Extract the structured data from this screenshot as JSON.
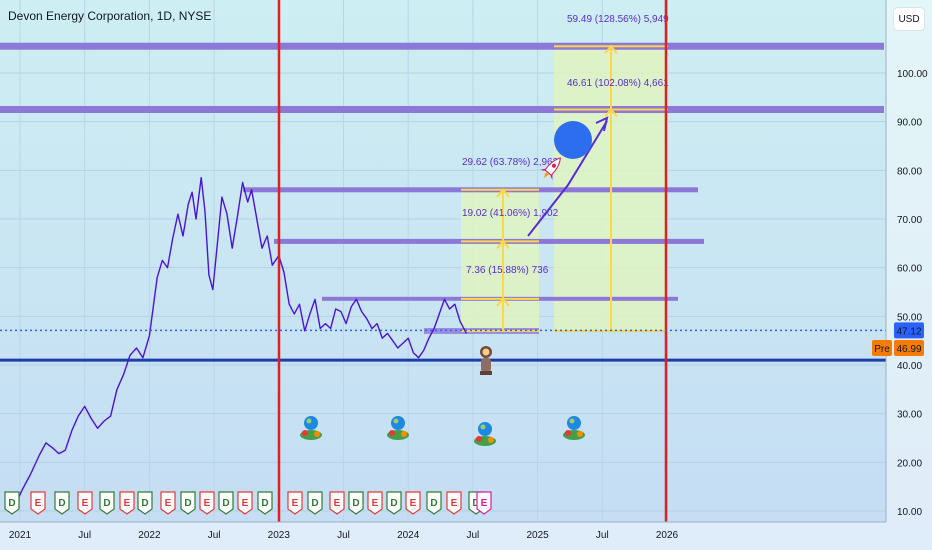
{
  "header": {
    "title": "Devon Energy Corporation, 1D, NYSE",
    "currency": "USD"
  },
  "price_labels": {
    "last": "47.12",
    "pre_tag": "Pre",
    "pre": "46.99"
  },
  "colors": {
    "background": "#c7e6f3",
    "price_line": "#4a12d6",
    "resistance": "#8d78d8",
    "support": "#1b3ea8",
    "vertical_marker": "#e0201f",
    "projection_box": "#dff3c0",
    "projection_line": "#ffd54a",
    "last_price_badge": "#2962ff",
    "pre_badge": "#f57c00",
    "earnings_e": "#e53935",
    "dividend_d": "#2e7d32"
  },
  "measurements": [
    {
      "label": "7.36 (15.88%) 736",
      "target": 53.6
    },
    {
      "label": "19.02 (41.06%) 1,902",
      "target": 65.4
    },
    {
      "label": "29.62 (63.78%) 2,962",
      "target": 76.0
    },
    {
      "label": "46.61 (102.08%) 4,661",
      "target": 92.5
    },
    {
      "label": "59.49 (128.56%) 5,949",
      "target": 105.5
    }
  ],
  "icons": [
    "rocket-icon",
    "moon-icon",
    "astronaut-icon",
    "planet-bouquet-icon",
    "planet-bouquet-icon",
    "planet-bouquet-icon",
    "planet-bouquet-icon"
  ],
  "event_markers": [
    "D",
    "E",
    "D",
    "E",
    "D",
    "E",
    "D",
    "E",
    "D",
    "E",
    "D",
    "E",
    "D",
    "E",
    "D",
    "E",
    "D",
    "E",
    "D",
    "E",
    "D",
    "E",
    "D",
    "E",
    "D",
    "E",
    "D",
    "E",
    "D",
    "E"
  ],
  "chart_data": {
    "type": "line",
    "title": "Devon Energy Corporation, 1D, NYSE",
    "x_ticks": [
      "2021",
      "Jul",
      "2022",
      "Jul",
      "2023",
      "Jul",
      "2024",
      "Jul",
      "2025",
      "Jul",
      "2026"
    ],
    "y_ticks": [
      "10.00",
      "20.00",
      "30.00",
      "40.00",
      "50.00",
      "60.00",
      "70.00",
      "80.00",
      "90.00",
      "100.00"
    ],
    "ylim": [
      8.5,
      111
    ],
    "xlim": [
      2020.95,
      2026.95
    ],
    "grid": true,
    "series": [
      {
        "values": [
          [
            2020.95,
            10.5
          ],
          [
            2021.02,
            14.5
          ],
          [
            2021.08,
            17.5
          ],
          [
            2021.15,
            21.5
          ],
          [
            2021.2,
            24.0
          ],
          [
            2021.25,
            23.0
          ],
          [
            2021.3,
            21.8
          ],
          [
            2021.35,
            22.5
          ],
          [
            2021.4,
            26.5
          ],
          [
            2021.45,
            29.5
          ],
          [
            2021.5,
            31.5
          ],
          [
            2021.55,
            29.0
          ],
          [
            2021.6,
            27.0
          ],
          [
            2021.65,
            28.5
          ],
          [
            2021.7,
            29.5
          ],
          [
            2021.75,
            35.0
          ],
          [
            2021.8,
            38.0
          ],
          [
            2021.85,
            42.0
          ],
          [
            2021.9,
            43.5
          ],
          [
            2021.95,
            41.5
          ],
          [
            2022.0,
            46.0
          ],
          [
            2022.03,
            52.0
          ],
          [
            2022.06,
            58.0
          ],
          [
            2022.1,
            61.5
          ],
          [
            2022.14,
            60.0
          ],
          [
            2022.18,
            66.0
          ],
          [
            2022.22,
            71.0
          ],
          [
            2022.26,
            66.5
          ],
          [
            2022.3,
            73.0
          ],
          [
            2022.33,
            75.5
          ],
          [
            2022.36,
            70.0
          ],
          [
            2022.4,
            78.5
          ],
          [
            2022.43,
            71.5
          ],
          [
            2022.46,
            58.5
          ],
          [
            2022.49,
            55.5
          ],
          [
            2022.52,
            63.5
          ],
          [
            2022.56,
            74.5
          ],
          [
            2022.6,
            71.0
          ],
          [
            2022.64,
            64.0
          ],
          [
            2022.68,
            70.5
          ],
          [
            2022.72,
            77.5
          ],
          [
            2022.76,
            73.5
          ],
          [
            2022.79,
            76.0
          ],
          [
            2022.83,
            70.0
          ],
          [
            2022.87,
            64.0
          ],
          [
            2022.91,
            66.5
          ],
          [
            2022.95,
            60.5
          ],
          [
            2023.0,
            62.5
          ],
          [
            2023.04,
            59.0
          ],
          [
            2023.08,
            52.5
          ],
          [
            2023.12,
            50.5
          ],
          [
            2023.16,
            52.5
          ],
          [
            2023.2,
            47.0
          ],
          [
            2023.24,
            50.5
          ],
          [
            2023.28,
            53.5
          ],
          [
            2023.32,
            47.5
          ],
          [
            2023.36,
            48.5
          ],
          [
            2023.4,
            47.5
          ],
          [
            2023.44,
            51.5
          ],
          [
            2023.48,
            51.0
          ],
          [
            2023.52,
            48.5
          ],
          [
            2023.56,
            52.0
          ],
          [
            2023.6,
            53.5
          ],
          [
            2023.64,
            51.0
          ],
          [
            2023.68,
            49.5
          ],
          [
            2023.72,
            47.5
          ],
          [
            2023.76,
            48.5
          ],
          [
            2023.8,
            45.5
          ],
          [
            2023.84,
            46.5
          ],
          [
            2023.88,
            45.0
          ],
          [
            2023.92,
            43.5
          ],
          [
            2023.96,
            44.5
          ],
          [
            2024.0,
            45.5
          ],
          [
            2024.04,
            42.5
          ],
          [
            2024.08,
            41.5
          ],
          [
            2024.12,
            43.0
          ],
          [
            2024.16,
            45.5
          ],
          [
            2024.2,
            47.5
          ],
          [
            2024.24,
            50.5
          ],
          [
            2024.28,
            53.5
          ],
          [
            2024.32,
            51.5
          ],
          [
            2024.36,
            52.5
          ],
          [
            2024.4,
            49.0
          ],
          [
            2024.45,
            46.5
          ]
        ]
      }
    ],
    "horizontal_levels": [
      105.5,
      92.5,
      76.0,
      65.4,
      53.6,
      46.99,
      41.0
    ],
    "vertical_markers": [
      "2023",
      "2026"
    ]
  }
}
